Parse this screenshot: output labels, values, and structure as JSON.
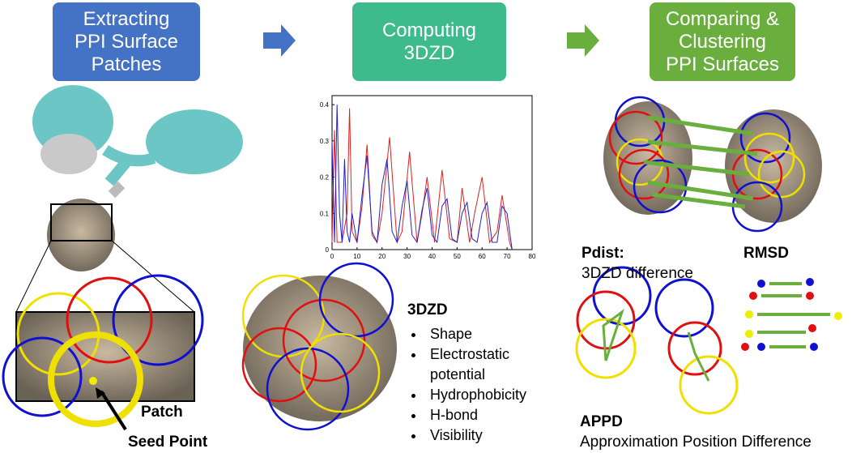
{
  "steps": [
    {
      "lines": [
        "Extracting",
        "PPI Surface",
        "Patches"
      ]
    },
    {
      "lines": [
        "Computing",
        "3DZD"
      ]
    },
    {
      "lines": [
        "Comparing &",
        "Clustering",
        "PPI Surfaces"
      ]
    }
  ],
  "patch_label": "Patch",
  "seed_label": "Seed Point",
  "plot": {
    "xlim": [
      0,
      80
    ],
    "ylim": [
      0,
      0.425
    ],
    "xticks": [
      0,
      10,
      20,
      30,
      40,
      50,
      60,
      70,
      80
    ],
    "yticks": [
      0,
      0.1,
      0.2,
      0.3,
      0.4
    ],
    "series": [
      {
        "color": "#e02020",
        "x": [
          0,
          1,
          2,
          4,
          6,
          7,
          8,
          10,
          12,
          14,
          16,
          18,
          20,
          23,
          26,
          28,
          31,
          34,
          36,
          38,
          41,
          44,
          47,
          50,
          52,
          55,
          57,
          60,
          63,
          66,
          68,
          71,
          72
        ],
        "values": [
          0.02,
          0.33,
          0.02,
          0.02,
          0.1,
          0.39,
          0.05,
          0.02,
          0.12,
          0.29,
          0.04,
          0.02,
          0.1,
          0.31,
          0.02,
          0.05,
          0.27,
          0.02,
          0.1,
          0.2,
          0.02,
          0.22,
          0.03,
          0.02,
          0.17,
          0.02,
          0.1,
          0.2,
          0.02,
          0.05,
          0.15,
          0.02,
          0.0
        ]
      },
      {
        "color": "#2020d0",
        "x": [
          0,
          1,
          2,
          3,
          4,
          5,
          6,
          7,
          8,
          10,
          12,
          14,
          16,
          18,
          20,
          22,
          24,
          26,
          28,
          30,
          32,
          34,
          36,
          38,
          40,
          42,
          44,
          46,
          48,
          50,
          52,
          54,
          56,
          58,
          60,
          62,
          64,
          66,
          68,
          70,
          72
        ],
        "values": [
          0.3,
          0.02,
          0.4,
          0.1,
          0.02,
          0.25,
          0.05,
          0.02,
          0.1,
          0.02,
          0.15,
          0.26,
          0.05,
          0.02,
          0.18,
          0.25,
          0.05,
          0.02,
          0.12,
          0.19,
          0.04,
          0.02,
          0.11,
          0.17,
          0.04,
          0.02,
          0.12,
          0.14,
          0.03,
          0.02,
          0.1,
          0.13,
          0.03,
          0.02,
          0.1,
          0.13,
          0.02,
          0.02,
          0.12,
          0.1,
          0.0
        ]
      }
    ]
  },
  "features": {
    "title": "3DZD",
    "items": [
      "Shape",
      "Electrostatic potential",
      "Hydrophobicity",
      "H-bond",
      "Visibility"
    ]
  },
  "pdist": {
    "title": "Pdist:",
    "subtitle": "3DZD difference"
  },
  "rmsd": "RMSD",
  "appd": {
    "title": "APPD",
    "subtitle": "Approximation Position Difference"
  }
}
